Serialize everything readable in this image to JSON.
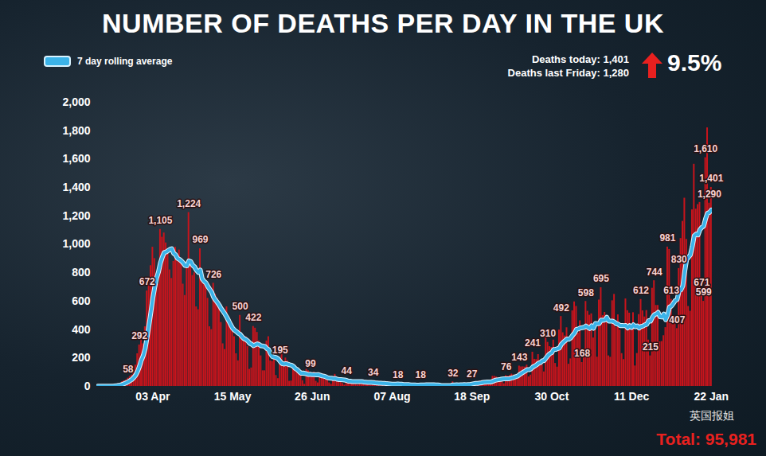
{
  "chart_data": {
    "type": "bar",
    "title": "NUMBER OF DEATHS PER DAY IN THE UK",
    "legend": "top-left",
    "grid": false,
    "data_labels": true,
    "annotations": [
      "Deaths today: 1,401",
      "Deaths last Friday: 1,280",
      "9.5%",
      "Total: 95,981",
      "英国报姐"
    ],
    "ylim": [
      0,
      2000
    ],
    "yticks": [
      0,
      200,
      400,
      600,
      800,
      {
        "value": 1000,
        "label": "1,000"
      },
      {
        "value": 1200,
        "label": "1,200"
      },
      {
        "value": 1400,
        "label": "1,400"
      },
      {
        "value": 1600,
        "label": "1,600"
      },
      {
        "value": 1800,
        "label": "1,800"
      },
      {
        "value": 2000,
        "label": "2,000"
      }
    ],
    "categories": [
      null,
      null,
      null,
      null,
      null,
      null,
      null,
      null,
      null,
      null,
      null,
      null,
      null,
      null,
      null,
      null,
      null,
      null,
      null,
      null,
      null,
      null,
      null,
      null,
      null,
      null,
      null,
      null,
      null,
      "03 Apr",
      null,
      null,
      null,
      null,
      null,
      null,
      null,
      null,
      null,
      null,
      null,
      null,
      null,
      null,
      null,
      null,
      null,
      null,
      null,
      null,
      null,
      null,
      null,
      null,
      null,
      null,
      null,
      null,
      null,
      null,
      null,
      null,
      null,
      null,
      null,
      null,
      null,
      null,
      null,
      null,
      null,
      "15 May",
      null,
      null,
      null,
      null,
      null,
      null,
      null,
      null,
      null,
      null,
      null,
      null,
      null,
      null,
      null,
      null,
      null,
      null,
      null,
      null,
      null,
      null,
      null,
      null,
      null,
      null,
      null,
      null,
      null,
      null,
      null,
      null,
      null,
      null,
      null,
      null,
      null,
      null,
      null,
      null,
      null,
      "26 Jun",
      null,
      null,
      null,
      null,
      null,
      null,
      null,
      null,
      null,
      null,
      null,
      null,
      null,
      null,
      null,
      null,
      null,
      null,
      null,
      null,
      null,
      null,
      null,
      null,
      null,
      null,
      null,
      null,
      null,
      null,
      null,
      null,
      null,
      null,
      null,
      null,
      null,
      null,
      null,
      null,
      null,
      "07 Aug",
      null,
      null,
      null,
      null,
      null,
      null,
      null,
      null,
      null,
      null,
      null,
      null,
      null,
      null,
      null,
      null,
      null,
      null,
      null,
      null,
      null,
      null,
      null,
      null,
      null,
      null,
      null,
      null,
      null,
      null,
      null,
      null,
      null,
      null,
      null,
      null,
      null,
      null,
      null,
      null,
      null,
      "18 Sep",
      null,
      null,
      null,
      null,
      null,
      null,
      null,
      null,
      null,
      null,
      null,
      null,
      null,
      null,
      null,
      null,
      null,
      null,
      null,
      null,
      null,
      null,
      null,
      null,
      null,
      null,
      null,
      null,
      null,
      null,
      null,
      null,
      null,
      null,
      null,
      null,
      null,
      null,
      null,
      null,
      null,
      "30 Oct",
      null,
      null,
      null,
      null,
      null,
      null,
      null,
      null,
      null,
      null,
      null,
      null,
      null,
      null,
      null,
      null,
      null,
      null,
      null,
      null,
      null,
      null,
      null,
      null,
      null,
      null,
      null,
      null,
      null,
      null,
      null,
      null,
      null,
      null,
      null,
      null,
      null,
      null,
      null,
      null,
      null,
      "11 Dec",
      null,
      null,
      null,
      null,
      null,
      null,
      null,
      null,
      null,
      null,
      null,
      null,
      null,
      null,
      null,
      null,
      null,
      null,
      null,
      null,
      null,
      null,
      null,
      null,
      null,
      null,
      null,
      null,
      null,
      null,
      null,
      null,
      null,
      null,
      null,
      null,
      null,
      null,
      null,
      null,
      null,
      "22 Jan"
    ],
    "series": [
      {
        "name": "7 day rolling average",
        "type": "line",
        "color": "#3bb3e8",
        "values": [
          1,
          1,
          1,
          1,
          1,
          1,
          1,
          1,
          1,
          3,
          5,
          7,
          9,
          14,
          19,
          25,
          32,
          40,
          49,
          62,
          79,
          106,
          141,
          185,
          217,
          266,
          346,
          433,
          522,
          620,
          697,
          763,
          806,
          868,
          909,
          942,
          946,
          955,
          964,
          969,
          937,
          927,
          901,
          894,
          883,
          869,
          851,
          849,
          883,
          878,
          852,
          841,
          818,
          803,
          819,
          757,
          740,
          728,
          703,
          683,
          663,
          628,
          608,
          591,
          571,
          547,
          529,
          509,
          486,
          461,
          434,
          410,
          396,
          386,
          374,
          366,
          349,
          336,
          330,
          320,
          304,
          297,
          286,
          293,
          299,
          295,
          285,
          284,
          281,
          266,
          258,
          229,
          209,
          206,
          202,
          194,
          176,
          161,
          157,
          160,
          157,
          152,
          149,
          141,
          126,
          118,
          105,
          93,
          94,
          91,
          88,
          84,
          85,
          82,
          82,
          81,
          83,
          79,
          74,
          72,
          68,
          61,
          59,
          58,
          54,
          56,
          50,
          48,
          47,
          46,
          45,
          42,
          36,
          36,
          34,
          34,
          33,
          33,
          33,
          34,
          31,
          30,
          28,
          28,
          28,
          27,
          25,
          24,
          23,
          22,
          21,
          21,
          19,
          18,
          17,
          16,
          15,
          15,
          17,
          15,
          15,
          13,
          13,
          12,
          12,
          10,
          10,
          10,
          9,
          9,
          10,
          10,
          10,
          11,
          11,
          11,
          11,
          11,
          10,
          10,
          8,
          6,
          6,
          6,
          5,
          5,
          6,
          10,
          10,
          11,
          10,
          11,
          11,
          12,
          11,
          12,
          13,
          16,
          19,
          21,
          21,
          23,
          25,
          28,
          30,
          31,
          31,
          31,
          36,
          41,
          45,
          47,
          49,
          52,
          53,
          53,
          53,
          55,
          59,
          63,
          68,
          72,
          82,
          91,
          100,
          107,
          117,
          117,
          122,
          136,
          143,
          151,
          163,
          167,
          179,
          182,
          200,
          217,
          230,
          237,
          259,
          260,
          265,
          269,
          295,
          309,
          321,
          333,
          332,
          341,
          360,
          375,
          401,
          404,
          411,
          413,
          416,
          425,
          416,
          407,
          426,
          409,
          442,
          441,
          442,
          466,
          465,
          467,
          486,
          460,
          460,
          459,
          453,
          441,
          438,
          427,
          429,
          427,
          428,
          412,
          427,
          415,
          433,
          420,
          426,
          411,
          422,
          424,
          433,
          436,
          462,
          459,
          486,
          504,
          510,
          521,
          490,
          488,
          509,
          469,
          503,
          559,
          565,
          584,
          604,
          611,
          671,
          679,
          707,
          809,
          893,
          909,
          926,
          985,
          1060,
          1072,
          1066,
          1103,
          1119,
          1129,
          1181,
          1218,
          1224,
          1241
        ]
      },
      {
        "type": "bar",
        "color": "#c8141c",
        "values": [
          1,
          1,
          0,
          1,
          1,
          2,
          2,
          2,
          1,
          10,
          14,
          20,
          16,
          33,
          40,
          45,
          58,
          70,
          80,
          110,
          150,
          230,
          292,
          360,
          300,
          420,
          672,
          760,
          850,
          980,
          900,
          760,
          720,
          1105,
          1050,
          1080,
          1010,
          960,
          820,
          760,
          880,
          980,
          900,
          960,
          880,
          720,
          640,
          860,
          1224,
          860,
          780,
          800,
          560,
          540,
          969,
          790,
          740,
          700,
          620,
          420,
          400,
          726,
          650,
          620,
          560,
          450,
          300,
          260,
          560,
          480,
          430,
          390,
          350,
          230,
          180,
          500,
          360,
          340,
          350,
          280,
          120,
          130,
          422,
          410,
          380,
          320,
          215,
          110,
          110,
          320,
          350,
          180,
          175,
          200,
          77,
          55,
          195,
          245,
          150,
          200,
          180,
          36,
          38,
          140,
          135,
          95,
          110,
          100,
          40,
          15,
          120,
          110,
          99,
          90,
          100,
          36,
          25,
          90,
          75,
          85,
          65,
          50,
          25,
          15,
          65,
          85,
          48,
          50,
          40,
          20,
          10,
          44,
          38,
          48,
          40,
          38,
          15,
          10,
          40,
          45,
          30,
          30,
          28,
          12,
          8,
          34,
          30,
          25,
          22,
          20,
          10,
          6,
          20,
          22,
          20,
          16,
          14,
          8,
          18,
          10,
          16,
          12,
          12,
          10,
          5,
          4,
          12,
          12,
          11,
          9,
          18,
          6,
          3,
          16,
          16,
          12,
          9,
          12,
          2,
          1,
          3,
          3,
          12,
          10,
          6,
          2,
          3,
          32,
          8,
          14,
          6,
          9,
          5,
          13,
          20,
          20,
          21,
          27,
          27,
          18,
          11,
          37,
          37,
          40,
          40,
          34,
          17,
          13,
          71,
          71,
          66,
          59,
          49,
          33,
          19,
          76,
          71,
          77,
          87,
          81,
          65,
          50,
          143,
          137,
          138,
          136,
          150,
          67,
          80,
          241,
          191,
          189,
          224,
          174,
          151,
          102,
          367,
          310,
          280,
          274,
          326,
          162,
          136,
          397,
          492,
          378,
          355,
          413,
          156,
          194,
          532,
          595,
          563,
          376,
          462,
          168,
          213,
          598,
          529,
          501,
          511,
          341,
          398,
          206,
          608,
          695,
          498,
          521,
          479,
          215,
          205,
          603,
          648,
          414,
          504,
          397,
          231,
          189,
          616,
          533,
          516,
          424,
          519,
          144,
          232,
          506,
          612,
          532,
          489,
          534,
          326,
          215,
          691,
          744,
          570,
          570,
          313,
          316,
          357,
          414,
          981,
          964,
          613,
          445,
          454,
          407,
          830,
          1041,
          1162,
          1325,
          1035,
          563,
          529,
          1243,
          1564,
          1248,
          1280,
          1295,
          671,
          599,
          1610,
          1820,
          1290,
          1401
        ],
        "value_labels": [
          null,
          null,
          null,
          null,
          null,
          null,
          null,
          null,
          null,
          null,
          null,
          null,
          null,
          null,
          null,
          null,
          "58",
          null,
          null,
          null,
          null,
          null,
          "292",
          null,
          null,
          null,
          "672",
          null,
          null,
          null,
          null,
          null,
          null,
          "1,105",
          null,
          null,
          null,
          null,
          null,
          null,
          null,
          null,
          null,
          null,
          null,
          null,
          null,
          null,
          "1,224",
          null,
          null,
          null,
          null,
          null,
          "969",
          null,
          null,
          null,
          null,
          null,
          null,
          "726",
          null,
          null,
          null,
          null,
          null,
          null,
          null,
          null,
          null,
          null,
          null,
          null,
          null,
          "500",
          null,
          null,
          null,
          null,
          null,
          null,
          "422",
          null,
          null,
          null,
          null,
          null,
          null,
          null,
          null,
          null,
          null,
          null,
          null,
          null,
          "195",
          null,
          null,
          null,
          null,
          null,
          null,
          null,
          null,
          null,
          null,
          null,
          null,
          null,
          null,
          null,
          "99",
          null,
          null,
          null,
          null,
          null,
          null,
          null,
          null,
          null,
          null,
          null,
          null,
          null,
          null,
          null,
          null,
          null,
          null,
          "44",
          null,
          null,
          null,
          null,
          null,
          null,
          null,
          null,
          null,
          null,
          null,
          null,
          null,
          "34",
          null,
          null,
          null,
          null,
          null,
          null,
          null,
          null,
          null,
          null,
          null,
          null,
          "18",
          null,
          null,
          null,
          null,
          null,
          null,
          null,
          null,
          null,
          null,
          null,
          "18",
          null,
          null,
          null,
          null,
          null,
          null,
          null,
          null,
          null,
          null,
          null,
          null,
          null,
          null,
          null,
          null,
          "32",
          null,
          null,
          null,
          null,
          null,
          null,
          null,
          null,
          null,
          "27",
          null,
          null,
          null,
          null,
          null,
          null,
          null,
          null,
          null,
          null,
          null,
          null,
          null,
          null,
          null,
          null,
          null,
          "76",
          null,
          null,
          null,
          null,
          null,
          null,
          "143",
          null,
          null,
          null,
          null,
          null,
          null,
          "241",
          null,
          null,
          null,
          null,
          null,
          null,
          null,
          "310",
          null,
          null,
          null,
          null,
          null,
          null,
          "492",
          null,
          null,
          null,
          null,
          null,
          null,
          null,
          null,
          null,
          null,
          "168",
          null,
          "598",
          null,
          null,
          null,
          null,
          null,
          null,
          null,
          "695",
          null,
          null,
          null,
          null,
          null,
          null,
          null,
          null,
          null,
          null,
          null,
          null,
          null,
          null,
          null,
          null,
          null,
          null,
          null,
          null,
          "612",
          null,
          null,
          null,
          null,
          "215",
          null,
          "744",
          null,
          null,
          null,
          null,
          null,
          null,
          "981",
          null,
          "613",
          null,
          null,
          "407",
          "830",
          null,
          null,
          null,
          null,
          null,
          null,
          null,
          null,
          null,
          null,
          null,
          "671",
          "599",
          "1,610",
          null,
          "1,290",
          "1,401"
        ]
      }
    ]
  }
}
